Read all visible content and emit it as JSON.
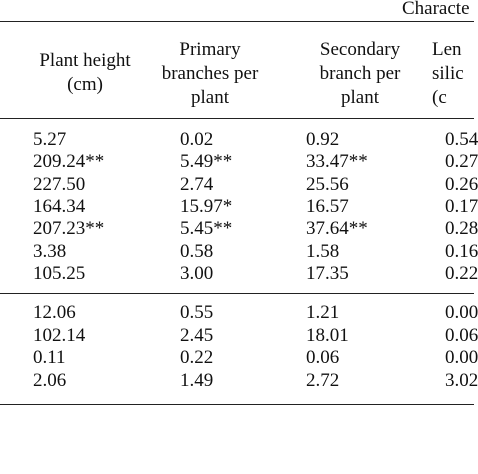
{
  "header": {
    "title": "Characte"
  },
  "table": {
    "columns": [
      [
        "Plant height",
        "(cm)"
      ],
      [
        "Primary",
        "branches per",
        "plant"
      ],
      [
        "Secondary",
        "branch per",
        "plant"
      ],
      [
        "Len",
        "silic",
        "(c"
      ]
    ],
    "rows": [
      [
        "5.27",
        "0.02",
        "0.92",
        "0.54"
      ],
      [
        "209.24**",
        "5.49**",
        "33.47**",
        "0.27"
      ],
      [
        "227.50",
        "2.74",
        "25.56",
        "0.26"
      ],
      [
        "164.34",
        "15.97*",
        "16.57",
        "0.17"
      ],
      [
        "207.23**",
        "5.45**",
        "37.64**",
        "0.28"
      ],
      [
        "3.38",
        "0.58",
        "1.58",
        "0.16"
      ],
      [
        "105.25",
        "3.00",
        "17.35",
        "0.22"
      ],
      [
        "12.06",
        "0.55",
        "1.21",
        "0.00"
      ],
      [
        "102.14",
        "2.45",
        "18.01",
        "0.06"
      ],
      [
        "0.11",
        "0.22",
        "0.06",
        "0.00"
      ],
      [
        "2.06",
        "1.49",
        "2.72",
        "3.02"
      ]
    ]
  }
}
